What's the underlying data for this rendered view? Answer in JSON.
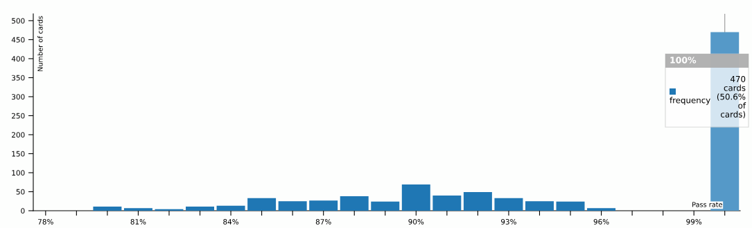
{
  "chart_data": {
    "type": "bar",
    "xlabel": "Pass rate",
    "ylabel": "Number of cards",
    "x": [
      78,
      79,
      80,
      81,
      82,
      83,
      84,
      85,
      86,
      87,
      88,
      89,
      90,
      91,
      92,
      93,
      94,
      95,
      96,
      97,
      98,
      99,
      100
    ],
    "series": [
      {
        "name": "frequency",
        "color": "#1f77b4",
        "colors": [
          "#1f77b4",
          "#1f77b4",
          "#1f77b4",
          "#1f77b4",
          "#1f77b4",
          "#1f77b4",
          "#1f77b4",
          "#1f77b4",
          "#1f77b4",
          "#1f77b4",
          "#1f77b4",
          "#1f77b4",
          "#1f77b4",
          "#1f77b4",
          "#1f77b4",
          "#1f77b4",
          "#1f77b4",
          "#1f77b4",
          "#1f77b4",
          "#1f77b4",
          "#1f77b4",
          "#1f77b4",
          "#5599c8"
        ],
        "values": [
          0,
          0,
          11,
          7,
          4,
          11,
          13,
          33,
          25,
          27,
          38,
          24,
          69,
          40,
          49,
          33,
          25,
          24,
          7,
          0,
          0,
          0,
          470
        ]
      }
    ],
    "xlim": [
      77.6,
      100.5
    ],
    "xticks": [
      {
        "value": 78,
        "label": "78%"
      },
      {
        "value": 79,
        "label": null
      },
      {
        "value": 80,
        "label": null
      },
      {
        "value": 81,
        "label": "81%"
      },
      {
        "value": 82,
        "label": null
      },
      {
        "value": 83,
        "label": null
      },
      {
        "value": 84,
        "label": "84%"
      },
      {
        "value": 85,
        "label": null
      },
      {
        "value": 86,
        "label": null
      },
      {
        "value": 87,
        "label": "87%"
      },
      {
        "value": 88,
        "label": null
      },
      {
        "value": 89,
        "label": null
      },
      {
        "value": 90,
        "label": "90%"
      },
      {
        "value": 91,
        "label": null
      },
      {
        "value": 92,
        "label": null
      },
      {
        "value": 93,
        "label": "93%"
      },
      {
        "value": 94,
        "label": null
      },
      {
        "value": 95,
        "label": null
      },
      {
        "value": 96,
        "label": "96%"
      },
      {
        "value": 97,
        "label": null
      },
      {
        "value": 98,
        "label": null
      },
      {
        "value": 99,
        "label": "99%"
      },
      {
        "value": 100,
        "label": null
      }
    ],
    "ylim": [
      0,
      518
    ],
    "yticks": [
      0,
      50,
      100,
      150,
      200,
      250,
      300,
      350,
      400,
      450,
      500
    ],
    "ref_lines": [
      {
        "axis": "x",
        "value": 100,
        "color": "#999999"
      }
    ],
    "annotations": [
      "100%",
      "470 cards (50.6% of cards)"
    ],
    "legend": "top right",
    "grid": false
  }
}
